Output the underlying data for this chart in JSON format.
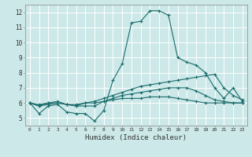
{
  "xlabel": "Humidex (Indice chaleur)",
  "xlim": [
    -0.5,
    23.5
  ],
  "ylim": [
    4.5,
    12.5
  ],
  "yticks": [
    5,
    6,
    7,
    8,
    9,
    10,
    11,
    12
  ],
  "xticks": [
    0,
    1,
    2,
    3,
    4,
    5,
    6,
    7,
    8,
    9,
    10,
    11,
    12,
    13,
    14,
    15,
    16,
    17,
    18,
    19,
    20,
    21,
    22,
    23
  ],
  "bg_color": "#cce8e8",
  "grid_color": "#ffffff",
  "line_color": "#1a6b6b",
  "series1": [
    6.0,
    5.3,
    5.8,
    5.9,
    5.4,
    5.3,
    5.3,
    4.8,
    5.5,
    7.5,
    8.6,
    11.3,
    11.4,
    12.1,
    12.1,
    11.8,
    9.0,
    8.7,
    8.5,
    8.0,
    7.0,
    6.3,
    7.0,
    6.1
  ],
  "series2": [
    6.0,
    5.8,
    6.0,
    6.1,
    5.9,
    5.8,
    6.0,
    6.1,
    6.3,
    6.5,
    6.7,
    6.9,
    7.1,
    7.2,
    7.3,
    7.4,
    7.5,
    7.6,
    7.7,
    7.8,
    7.9,
    7.0,
    6.5,
    6.2
  ],
  "series3": [
    6.0,
    5.8,
    5.9,
    6.0,
    5.9,
    5.8,
    5.8,
    5.8,
    6.1,
    6.3,
    6.5,
    6.6,
    6.7,
    6.8,
    6.9,
    7.0,
    7.0,
    7.0,
    6.8,
    6.5,
    6.2,
    6.1,
    6.0,
    6.0
  ],
  "series4": [
    6.0,
    5.9,
    6.0,
    6.0,
    5.9,
    5.9,
    6.0,
    6.0,
    6.1,
    6.2,
    6.3,
    6.3,
    6.3,
    6.4,
    6.4,
    6.4,
    6.3,
    6.2,
    6.1,
    6.0,
    6.0,
    6.0,
    6.0,
    6.0
  ]
}
